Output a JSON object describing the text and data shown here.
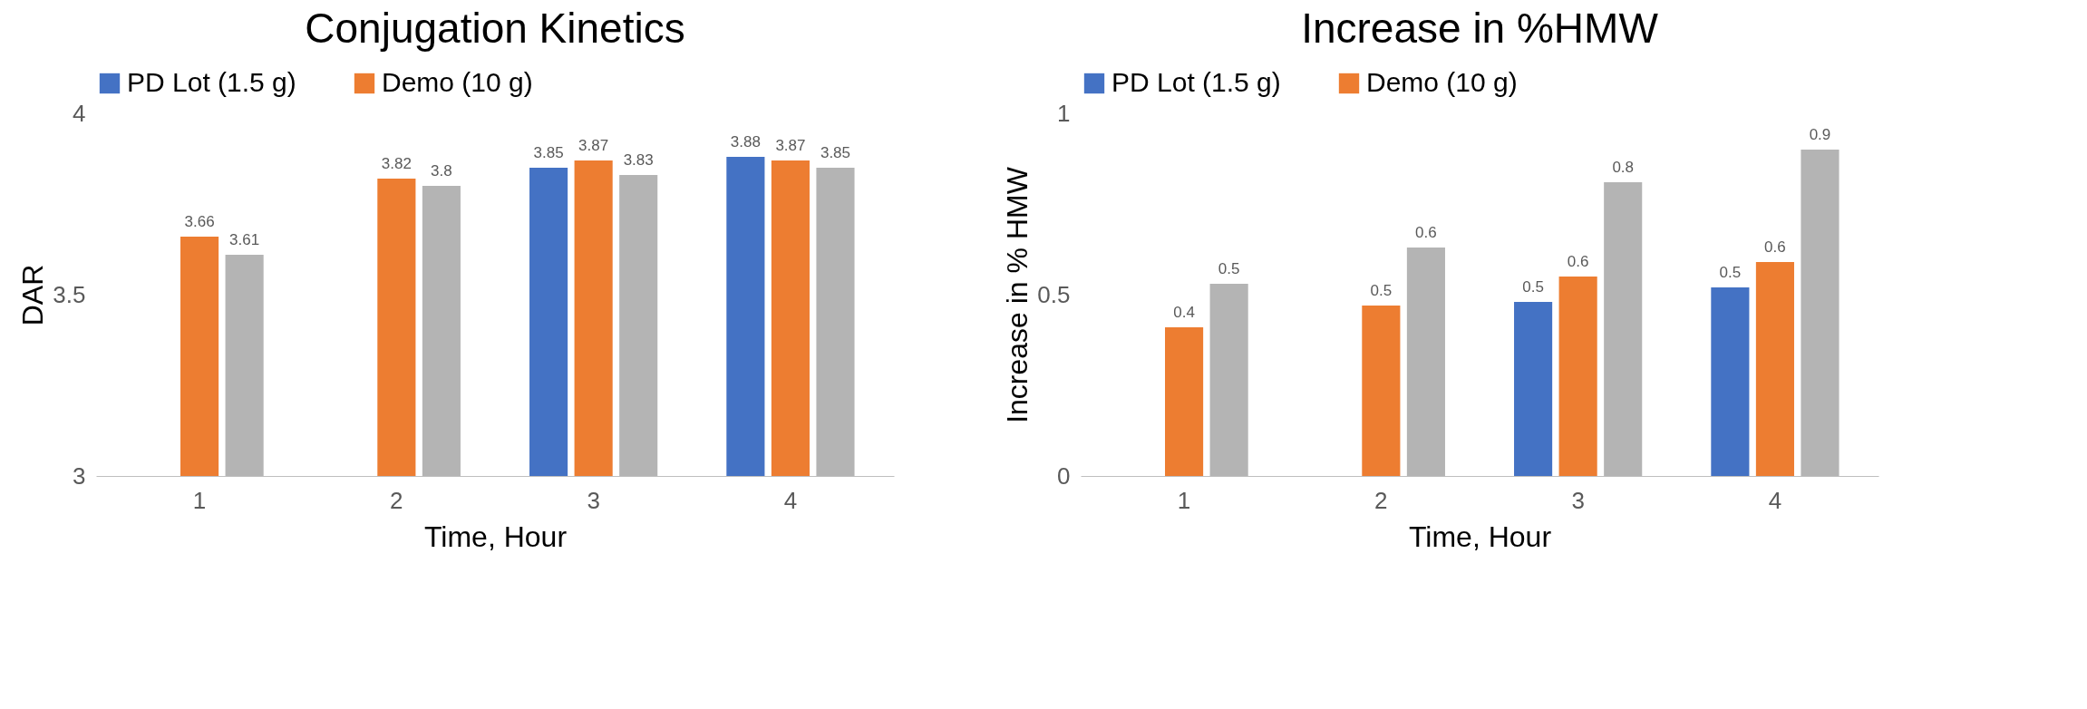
{
  "chart_data": [
    {
      "type": "bar",
      "title": "Conjugation Kinetics",
      "xlabel": "Time, Hour",
      "ylabel": "DAR",
      "categories": [
        "1",
        "2",
        "3",
        "4"
      ],
      "ylim": [
        3,
        4
      ],
      "yticks": [
        3,
        3.5,
        4
      ],
      "legend": "top",
      "grid": false,
      "data_labels": true,
      "series": [
        {
          "name": "PD Lot (1.5 g)",
          "color": "#4472c4",
          "values": [
            null,
            null,
            3.85,
            3.88
          ]
        },
        {
          "name": "Demo (10 g)",
          "color": "#ed7d31",
          "values": [
            3.66,
            3.82,
            3.87,
            3.87
          ]
        },
        {
          "color": "#b4b4b4",
          "values": [
            3.61,
            3.8,
            3.83,
            3.85
          ]
        }
      ]
    },
    {
      "type": "bar",
      "title": "Increase in %HMW",
      "xlabel": "Time, Hour",
      "ylabel": "Increase in % HMW",
      "categories": [
        "1",
        "2",
        "3",
        "4"
      ],
      "ylim": [
        0,
        1
      ],
      "yticks": [
        0,
        0.5,
        1
      ],
      "legend": "top",
      "grid": false,
      "series": [
        {
          "name": "PD Lot (1.5 g)",
          "color": "#4472c4",
          "values": [
            null,
            null,
            0.48,
            0.52
          ],
          "value_labels": [
            null,
            null,
            "0.5",
            "0.5"
          ]
        },
        {
          "name": "Demo  (10 g)",
          "color": "#ed7d31",
          "values": [
            0.41,
            0.47,
            0.55,
            0.59
          ],
          "value_labels": [
            "0.4",
            "0.5",
            "0.6",
            "0.6"
          ]
        },
        {
          "color": "#b4b4b4",
          "values": [
            0.53,
            0.63,
            0.81,
            0.9
          ],
          "value_labels": [
            "0.5",
            "0.6",
            "0.8",
            "0.9"
          ]
        }
      ]
    }
  ]
}
